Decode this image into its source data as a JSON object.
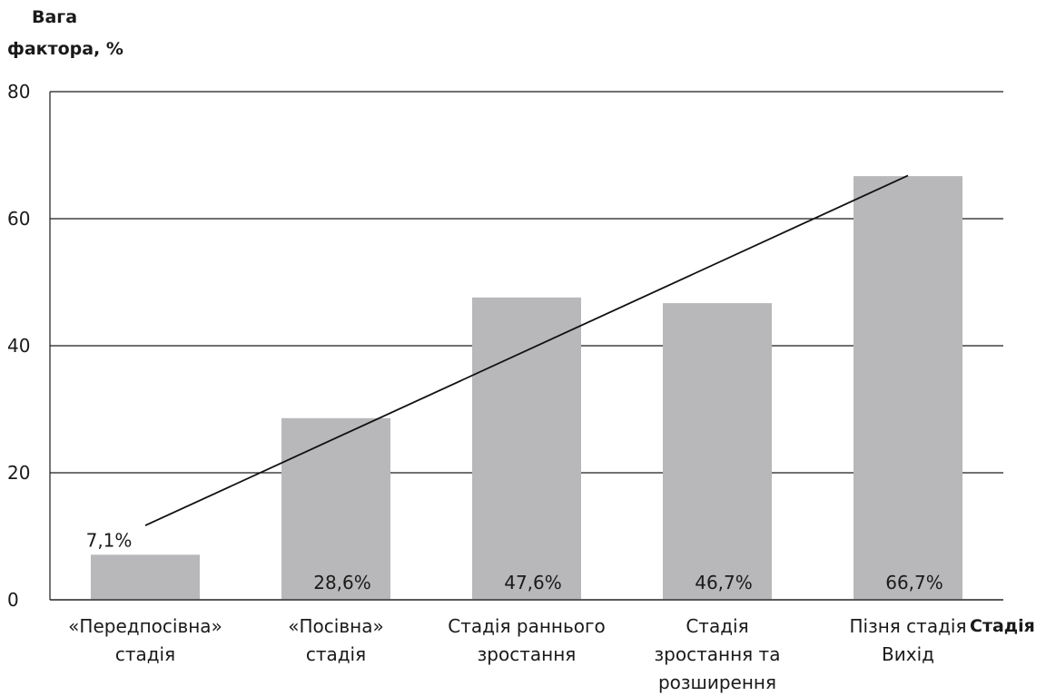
{
  "chart_data": {
    "type": "bar",
    "ylabel_lines": [
      "Вага",
      "фактора, %"
    ],
    "xlabel": "Стадія",
    "ylim": [
      0,
      80
    ],
    "yticks": [
      0,
      20,
      40,
      60,
      80
    ],
    "grid": true,
    "categories": [
      [
        "«Передпосівна»",
        "стадія"
      ],
      [
        "«Посівна»",
        "стадія"
      ],
      [
        "Стадія раннього",
        "зростання"
      ],
      [
        "Стадія",
        "зростання та",
        "розширення"
      ],
      [
        "Пізня стадія",
        "Вихід"
      ]
    ],
    "values": [
      7.1,
      28.6,
      47.6,
      46.7,
      66.7
    ],
    "data_labels": [
      "7,1%",
      "28,6%",
      "47,6%",
      "46,7%",
      "66,7%"
    ],
    "trendline": {
      "type": "linear",
      "start": 11.7,
      "end": 66.8
    },
    "colors": {
      "bar": "#b8b8ba",
      "line": "#111111"
    }
  }
}
